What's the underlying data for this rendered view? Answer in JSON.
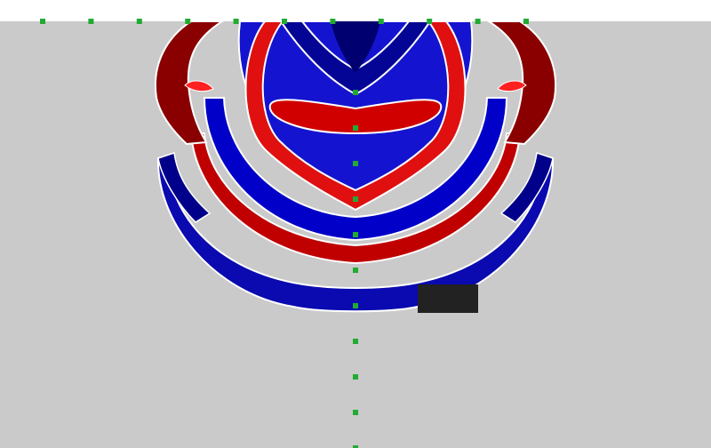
{
  "scene": {
    "background_color": "#cacaca",
    "top_strip_color": "#ffffff",
    "wave_colors": {
      "positive_dark": "#5a0000",
      "positive_bright": "#ff2a2a",
      "negative_dark": "#000080",
      "negative_bright": "#2a2aff",
      "white_edge": "#ffffff"
    },
    "marker_color": "#22aa33",
    "shadow_block_color": "#222222",
    "markers": {
      "top_row_count": 11,
      "center_column_count": 11
    }
  }
}
